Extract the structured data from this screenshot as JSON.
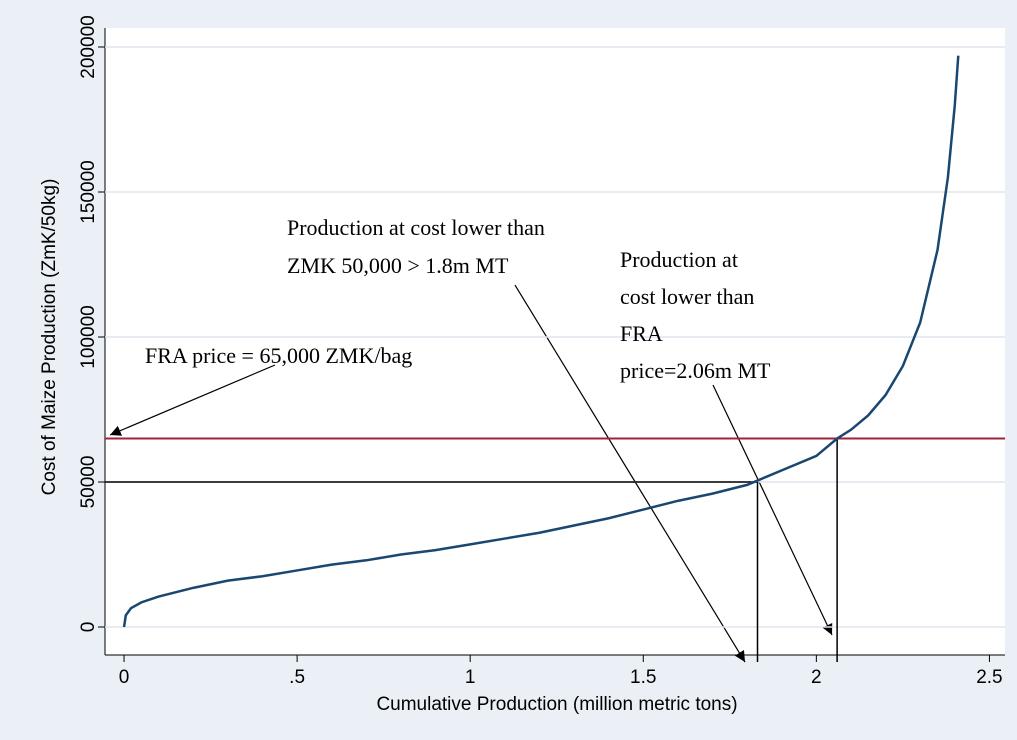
{
  "chart_data": {
    "type": "line",
    "x_label": "Cumulative Production (million metric tons)",
    "y_label": "Cost of Maize Production (ZmK/50kg)",
    "xlim": [
      -0.055,
      2.545
    ],
    "ylim": [
      -9655,
      206550
    ],
    "xticks": [
      0,
      {
        "value": 0.5,
        "label": ".5"
      },
      1,
      {
        "value": 1.5,
        "label": "1.5"
      },
      2,
      2.5
    ],
    "yticks": [
      0,
      50000,
      100000,
      150000,
      200000
    ],
    "grid": true,
    "series": [
      {
        "name": null,
        "color": "#1a476f",
        "x": [
          0,
          0.005,
          0.02,
          0.05,
          0.1,
          0.15,
          0.2,
          0.3,
          0.4,
          0.5,
          0.6,
          0.7,
          0.8,
          0.9,
          1.0,
          1.1,
          1.2,
          1.3,
          1.4,
          1.5,
          1.6,
          1.7,
          1.8,
          1.83,
          1.9,
          2.0,
          2.06,
          2.1,
          2.15,
          2.2,
          2.25,
          2.3,
          2.35,
          2.38,
          2.4,
          2.41
        ],
        "values": [
          0,
          4000,
          6500,
          8500,
          10500,
          12000,
          13500,
          16000,
          17500,
          19500,
          21500,
          23000,
          25000,
          26500,
          28500,
          30500,
          32500,
          35000,
          37500,
          40500,
          43500,
          46000,
          49000,
          50500,
          54000,
          59000,
          65000,
          68000,
          73000,
          80000,
          90000,
          105000,
          130000,
          155000,
          180000,
          197000
        ]
      }
    ],
    "reference_lines": [
      {
        "y": 65000,
        "color": "#a0213a"
      },
      {
        "y": 50000,
        "x": 1.83,
        "color": "#000000"
      },
      {
        "y": 65000,
        "x": 2.06,
        "color": "#000000"
      }
    ],
    "annotations": [
      {
        "lines": [
          "Production at cost lower than",
          "ZMK 50,000  > 1.8m MT"
        ]
      },
      {
        "lines": [
          "Production at",
          "cost lower than",
          "FRA",
          "price=2.06m MT"
        ]
      },
      {
        "lines": [
          "FRA price = 65,000 ZMK/bag"
        ]
      }
    ]
  }
}
